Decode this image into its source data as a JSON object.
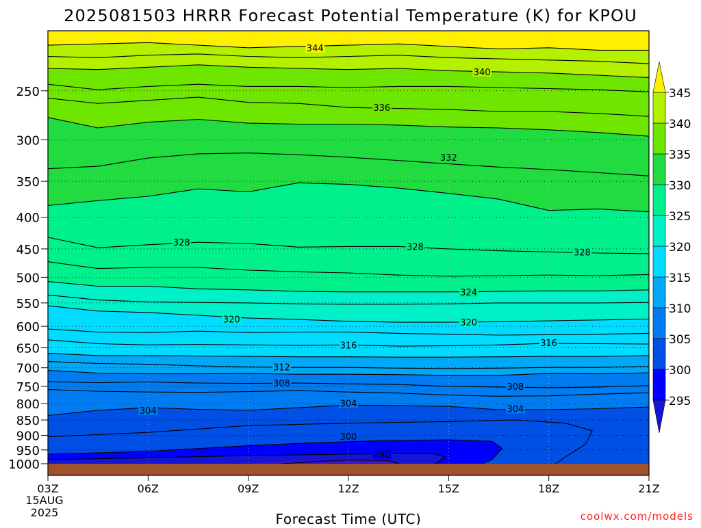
{
  "chart_data": {
    "type": "heatmap",
    "title": "2025081503 HRRR Forecast Potential Temperature (K) for KPOU",
    "xlabel": "Forecast Time (UTC)",
    "ylabel": "",
    "credit": "coolwx.com/models",
    "x_ticks": [
      "03Z",
      "06Z",
      "09Z",
      "12Z",
      "15Z",
      "18Z",
      "21Z"
    ],
    "x_hours": [
      3,
      6,
      9,
      12,
      15,
      18,
      21
    ],
    "xlim": [
      3,
      21
    ],
    "x_start_date_lines": [
      "15AUG",
      "2025"
    ],
    "y_ticks": [
      250,
      300,
      350,
      400,
      450,
      500,
      550,
      600,
      650,
      700,
      750,
      800,
      850,
      900,
      950,
      1000
    ],
    "y_scale": "log-pressure (inverted)",
    "ylim": [
      1000,
      200
    ],
    "grid": true,
    "colorbar": {
      "levels": [
        295,
        300,
        305,
        310,
        315,
        320,
        325,
        330,
        335,
        340,
        345
      ],
      "colors": [
        "#1515d5",
        "#0000ff",
        "#0050e6",
        "#007cf0",
        "#00a8f5",
        "#00dcff",
        "#00f0c8",
        "#00f08c",
        "#20dc40",
        "#6ee600",
        "#b4f000",
        "#fff000"
      ],
      "extend": "both"
    },
    "contour_labels": [
      {
        "value": "344",
        "hour": 11.0,
        "p": 213
      },
      {
        "value": "340",
        "hour": 16.0,
        "p": 233
      },
      {
        "value": "336",
        "hour": 13.0,
        "p": 266
      },
      {
        "value": "332",
        "hour": 15.0,
        "p": 320
      },
      {
        "value": "328",
        "hour": 7.0,
        "p": 439
      },
      {
        "value": "328",
        "hour": 14.0,
        "p": 446
      },
      {
        "value": "328",
        "hour": 19.0,
        "p": 455
      },
      {
        "value": "324",
        "hour": 15.6,
        "p": 528
      },
      {
        "value": "320",
        "hour": 8.5,
        "p": 584
      },
      {
        "value": "320",
        "hour": 15.6,
        "p": 591
      },
      {
        "value": "316",
        "hour": 12.0,
        "p": 643
      },
      {
        "value": "316",
        "hour": 18.0,
        "p": 638
      },
      {
        "value": "312",
        "hour": 10.0,
        "p": 698
      },
      {
        "value": "308",
        "hour": 10.0,
        "p": 741
      },
      {
        "value": "308",
        "hour": 17.0,
        "p": 750
      },
      {
        "value": "304",
        "hour": 6.0,
        "p": 820
      },
      {
        "value": "304",
        "hour": 12.0,
        "p": 798
      },
      {
        "value": "304",
        "hour": 17.0,
        "p": 815
      },
      {
        "value": "300",
        "hour": 12.0,
        "p": 903
      },
      {
        "value": "296",
        "hour": 13.0,
        "p": 965
      }
    ],
    "isotherms": [
      {
        "value": 344,
        "p": [
          211,
          210,
          209,
          211,
          213,
          212,
          211,
          210,
          212,
          214,
          213,
          215,
          215
        ]
      },
      {
        "value": 342,
        "p": [
          220,
          221,
          219,
          218,
          220,
          221,
          220,
          219,
          221,
          222,
          223,
          224,
          226
        ]
      },
      {
        "value": 340,
        "p": [
          230,
          231,
          229,
          227,
          229,
          230,
          231,
          230,
          232,
          233,
          234,
          236,
          238
        ]
      },
      {
        "value": 338,
        "p": [
          244,
          249,
          246,
          244,
          246,
          246,
          247,
          246,
          246,
          247,
          248,
          249,
          251
        ]
      },
      {
        "value": 336,
        "p": [
          257,
          262,
          259,
          256,
          261,
          262,
          266,
          267,
          268,
          270,
          270,
          272,
          275
        ]
      },
      {
        "value": 334,
        "p": [
          276,
          287,
          281,
          278,
          282,
          283,
          283,
          284,
          286,
          287,
          289,
          292,
          296
        ]
      },
      {
        "value": 332,
        "p": [
          334,
          331,
          321,
          316,
          315,
          317,
          320,
          324,
          328,
          332,
          335,
          339,
          343
        ]
      },
      {
        "value": 330,
        "p": [
          383,
          376,
          370,
          360,
          364,
          352,
          354,
          359,
          366,
          374,
          390,
          388,
          392
        ]
      },
      {
        "value": 328,
        "p": [
          431,
          448,
          443,
          439,
          441,
          447,
          446,
          446,
          450,
          453,
          455,
          457,
          458
        ]
      },
      {
        "value": 326,
        "p": [
          472,
          484,
          482,
          482,
          487,
          490,
          492,
          496,
          498,
          497,
          496,
          497,
          495
        ]
      },
      {
        "value": 324,
        "p": [
          508,
          517,
          517,
          522,
          524,
          527,
          528,
          528,
          528,
          527,
          526,
          526,
          524
        ]
      },
      {
        "value": 322,
        "p": [
          534,
          544,
          548,
          549,
          550,
          552,
          553,
          553,
          552,
          550,
          550,
          550,
          549
        ]
      },
      {
        "value": 320,
        "p": [
          556,
          567,
          570,
          576,
          582,
          585,
          589,
          591,
          591,
          590,
          588,
          586,
          584
        ]
      },
      {
        "value": 318,
        "p": [
          606,
          613,
          614,
          611,
          614,
          613,
          613,
          616,
          618,
          620,
          619,
          618,
          616
        ]
      },
      {
        "value": 316,
        "p": [
          631,
          640,
          643,
          642,
          643,
          644,
          643,
          646,
          645,
          643,
          639,
          640,
          641
        ]
      },
      {
        "value": 314,
        "p": [
          663,
          669,
          669,
          670,
          671,
          672,
          672,
          673,
          673,
          672,
          671,
          671,
          669
        ]
      },
      {
        "value": 312,
        "p": [
          684,
          689,
          691,
          695,
          698,
          699,
          699,
          701,
          702,
          701,
          699,
          699,
          696
        ]
      },
      {
        "value": 310,
        "p": [
          707,
          714,
          716,
          716,
          715,
          717,
          717,
          718,
          720,
          720,
          715,
          716,
          713
        ]
      },
      {
        "value": 308,
        "p": [
          737,
          740,
          738,
          741,
          742,
          741,
          743,
          745,
          750,
          752,
          754,
          752,
          748
        ]
      },
      {
        "value": 306,
        "p": [
          759,
          764,
          766,
          767,
          765,
          762,
          766,
          769,
          775,
          778,
          777,
          772,
          768
        ]
      },
      {
        "value": 304,
        "p": [
          836,
          820,
          812,
          817,
          820,
          812,
          804,
          806,
          808,
          818,
          818,
          815,
          810
        ]
      }
    ]
  }
}
